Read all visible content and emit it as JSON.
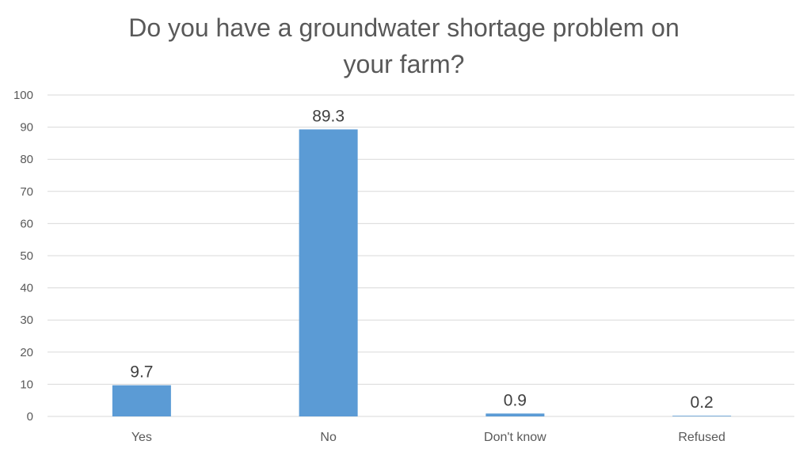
{
  "chart_data": {
    "type": "bar",
    "title_lines": [
      "Do you have a groundwater shortage problem on",
      "your farm?"
    ],
    "categories": [
      "Yes",
      "No",
      "Don't know",
      "Refused"
    ],
    "values": [
      9.7,
      89.3,
      0.9,
      0.2
    ],
    "data_labels": [
      "9.7",
      "89.3",
      "0.9",
      "0.2"
    ],
    "xlabel": "",
    "ylabel": "",
    "ylim": [
      0,
      100
    ],
    "yticks": [
      0,
      10,
      20,
      30,
      40,
      50,
      60,
      70,
      80,
      90,
      100
    ],
    "grid": true,
    "legend": "none",
    "bar_color": "#5B9BD5",
    "grid_color": "#D9D9D9"
  }
}
